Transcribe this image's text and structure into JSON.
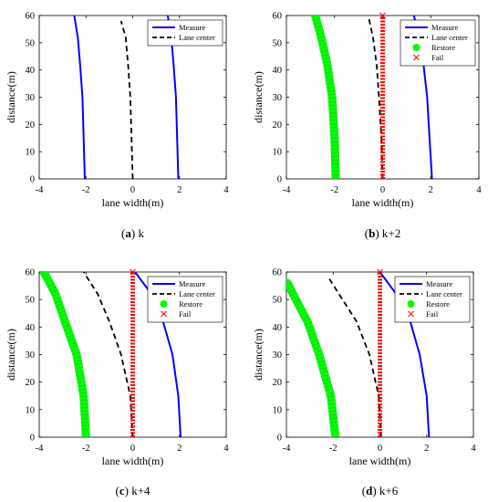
{
  "chart_data": [
    {
      "type": "line",
      "caption": {
        "letter": "a",
        "rest": "k"
      },
      "xlabel": "lane width(m)",
      "ylabel": "distance(m)",
      "xlim": [
        -4,
        4
      ],
      "ylim": [
        0,
        60
      ],
      "xticks": [
        "-4",
        "-2",
        "0",
        "2",
        "4"
      ],
      "yticks": [
        "0",
        "10",
        "20",
        "30",
        "40",
        "50",
        "60"
      ],
      "legend_position": "top-right",
      "legend": [
        {
          "label": "Measure",
          "style": "measure"
        },
        {
          "label": "Lane center",
          "style": "center"
        }
      ],
      "series": [
        {
          "name": "Measure",
          "style": "measure",
          "x": [
            -2.05,
            -2.1,
            -2.15,
            -2.25,
            -2.35,
            -2.5
          ],
          "y": [
            0,
            15,
            30,
            42,
            52,
            60
          ]
        },
        {
          "name": "Measure",
          "style": "measure",
          "x": [
            1.95,
            1.9,
            1.85,
            1.75,
            1.65,
            1.5
          ],
          "y": [
            0,
            15,
            30,
            42,
            52,
            60
          ]
        },
        {
          "name": "Lane center",
          "style": "center",
          "x": [
            0,
            -0.05,
            -0.1,
            -0.2,
            -0.3,
            -0.5
          ],
          "y": [
            0,
            15,
            30,
            42,
            52,
            58
          ]
        }
      ]
    },
    {
      "type": "line",
      "caption": {
        "letter": "b",
        "rest": "k+2"
      },
      "xlabel": "lane width(m)",
      "ylabel": "distance(m)",
      "xlim": [
        -4,
        4
      ],
      "ylim": [
        0,
        60
      ],
      "xticks": [
        "-4",
        "-2",
        "0",
        "2",
        "4"
      ],
      "yticks": [
        "0",
        "10",
        "20",
        "30",
        "40",
        "50",
        "60"
      ],
      "legend_position": "top-right",
      "legend": [
        {
          "label": "Measure",
          "style": "measure"
        },
        {
          "label": "Lane center",
          "style": "center"
        },
        {
          "label": "Restore",
          "style": "restore"
        },
        {
          "label": "Fail",
          "style": "fail"
        }
      ],
      "series": [
        {
          "name": "Measure",
          "style": "measure",
          "x": [
            2.05,
            1.95,
            1.85,
            1.7,
            1.5,
            1.3
          ],
          "y": [
            0,
            15,
            30,
            42,
            52,
            60
          ]
        },
        {
          "name": "Lane center",
          "style": "center",
          "x": [
            0,
            -0.05,
            -0.15,
            -0.25,
            -0.4,
            -0.6
          ],
          "y": [
            0,
            15,
            30,
            42,
            52,
            60
          ]
        },
        {
          "name": "Restore",
          "style": "restore",
          "x": [
            -1.95,
            -2.0,
            -2.1,
            -2.3,
            -2.55,
            -2.8
          ],
          "y": [
            0,
            15,
            30,
            42,
            52,
            60
          ]
        },
        {
          "name": "Fail",
          "style": "fail",
          "x": [
            0,
            0,
            0,
            0,
            0,
            0
          ],
          "y": [
            0,
            15,
            30,
            42,
            52,
            60
          ]
        }
      ]
    },
    {
      "type": "line",
      "caption": {
        "letter": "c",
        "rest": "k+4"
      },
      "xlabel": "lane width(m)",
      "ylabel": "distance(m)",
      "xlim": [
        -4,
        4
      ],
      "ylim": [
        0,
        60
      ],
      "xticks": [
        "-4",
        "-2",
        "0",
        "2",
        "4"
      ],
      "yticks": [
        "0",
        "10",
        "20",
        "30",
        "40",
        "50",
        "60"
      ],
      "legend_position": "top-right",
      "legend": [
        {
          "label": "Measure",
          "style": "measure"
        },
        {
          "label": "Lane center",
          "style": "center"
        },
        {
          "label": "Restore",
          "style": "restore"
        },
        {
          "label": "Fail",
          "style": "fail"
        }
      ],
      "series": [
        {
          "name": "Measure",
          "style": "measure",
          "x": [
            2.05,
            1.95,
            1.7,
            1.3,
            0.8,
            0.1
          ],
          "y": [
            0,
            15,
            30,
            42,
            52,
            60
          ]
        },
        {
          "name": "Lane center",
          "style": "center",
          "x": [
            0,
            -0.1,
            -0.5,
            -1.0,
            -1.5,
            -2.1
          ],
          "y": [
            0,
            15,
            30,
            42,
            52,
            60
          ]
        },
        {
          "name": "Restore",
          "style": "restore",
          "x": [
            -2.0,
            -2.1,
            -2.4,
            -2.9,
            -3.3,
            -3.8
          ],
          "y": [
            0,
            15,
            30,
            42,
            52,
            60
          ]
        },
        {
          "name": "Fail",
          "style": "fail",
          "x": [
            0,
            0,
            0,
            0,
            0,
            0
          ],
          "y": [
            0,
            15,
            30,
            42,
            52,
            60
          ]
        }
      ]
    },
    {
      "type": "line",
      "caption": {
        "letter": "d",
        "rest": "k+6"
      },
      "xlabel": "lane width(m)",
      "ylabel": "distance(m)",
      "xlim": [
        -4,
        4
      ],
      "ylim": [
        0,
        60
      ],
      "xticks": [
        "-4",
        "-2",
        "0",
        "2",
        "4"
      ],
      "yticks": [
        "0",
        "10",
        "20",
        "30",
        "40",
        "50",
        "60"
      ],
      "legend_position": "top-right",
      "legend": [
        {
          "label": "Measure",
          "style": "measure"
        },
        {
          "label": "Lane center",
          "style": "center"
        },
        {
          "label": "Restore",
          "style": "restore"
        },
        {
          "label": "Fail",
          "style": "fail"
        }
      ],
      "series": [
        {
          "name": "Measure",
          "style": "measure",
          "x": [
            2.1,
            2.0,
            1.7,
            1.3,
            0.7,
            0.0
          ],
          "y": [
            0,
            15,
            30,
            42,
            52,
            60
          ]
        },
        {
          "name": "Lane center",
          "style": "center",
          "x": [
            0.05,
            -0.05,
            -0.45,
            -1.0,
            -1.6,
            -2.2
          ],
          "y": [
            0,
            15,
            30,
            42,
            50,
            58
          ]
        },
        {
          "name": "Restore",
          "style": "restore",
          "x": [
            -1.9,
            -2.1,
            -2.6,
            -3.1,
            -3.6,
            -3.95
          ],
          "y": [
            0,
            15,
            30,
            42,
            50,
            56
          ]
        },
        {
          "name": "Fail",
          "style": "fail",
          "x": [
            0,
            0,
            0,
            0,
            0,
            0
          ],
          "y": [
            0,
            15,
            30,
            42,
            52,
            60
          ]
        }
      ]
    }
  ],
  "colors": {
    "measure": "#0000ff",
    "center": "#000000",
    "restore": "#00ff00",
    "fail": "#ff0000"
  }
}
